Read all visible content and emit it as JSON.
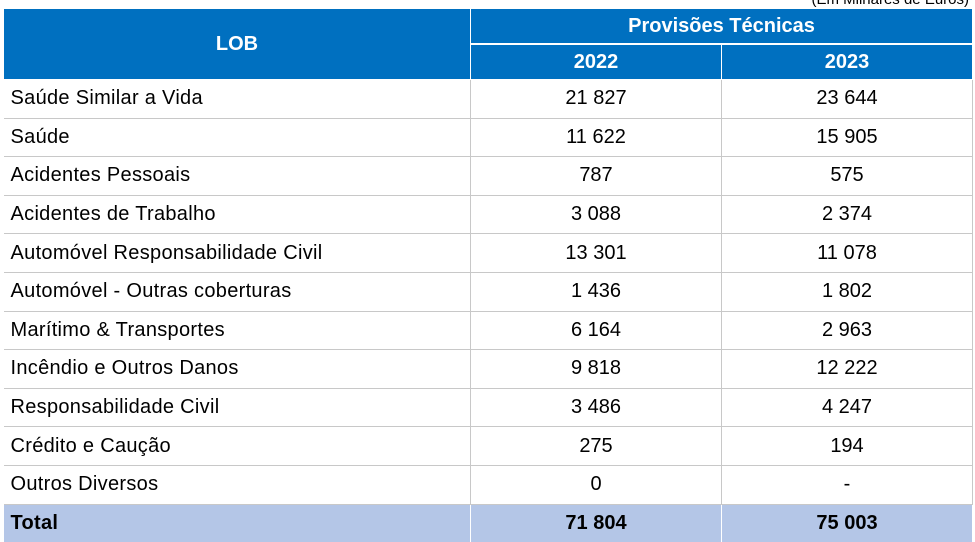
{
  "unit_note": "(Em Milhares de Euros)",
  "header": {
    "lob": "LOB",
    "group": "Provisões Técnicas",
    "years": [
      "2022",
      "2023"
    ]
  },
  "rows": [
    {
      "label": "Saúde Similar a Vida",
      "v2022": "21 827",
      "v2023": "23 644"
    },
    {
      "label": "Saúde",
      "v2022": "11 622",
      "v2023": "15 905"
    },
    {
      "label": "Acidentes Pessoais",
      "v2022": "787",
      "v2023": "575"
    },
    {
      "label": "Acidentes de Trabalho",
      "v2022": "3 088",
      "v2023": "2 374"
    },
    {
      "label": "Automóvel Responsabilidade Civil",
      "v2022": "13 301",
      "v2023": "11 078"
    },
    {
      "label": "Automóvel - Outras coberturas",
      "v2022": "1 436",
      "v2023": "1 802"
    },
    {
      "label": "Marítimo & Transportes",
      "v2022": "6 164",
      "v2023": "2 963"
    },
    {
      "label": "Incêndio e Outros Danos",
      "v2022": "9 818",
      "v2023": "12 222"
    },
    {
      "label": "Responsabilidade Civil",
      "v2022": "3 486",
      "v2023": "4 247"
    },
    {
      "label": "Crédito e Caução",
      "v2022": "275",
      "v2023": "194"
    },
    {
      "label": "Outros Diversos",
      "v2022": "0",
      "v2023": "-"
    }
  ],
  "total": {
    "label": "Total",
    "v2022": "71 804",
    "v2023": "75 003"
  },
  "colors": {
    "header_bg": "#0070c0",
    "total_bg": "#b4c6e7"
  }
}
